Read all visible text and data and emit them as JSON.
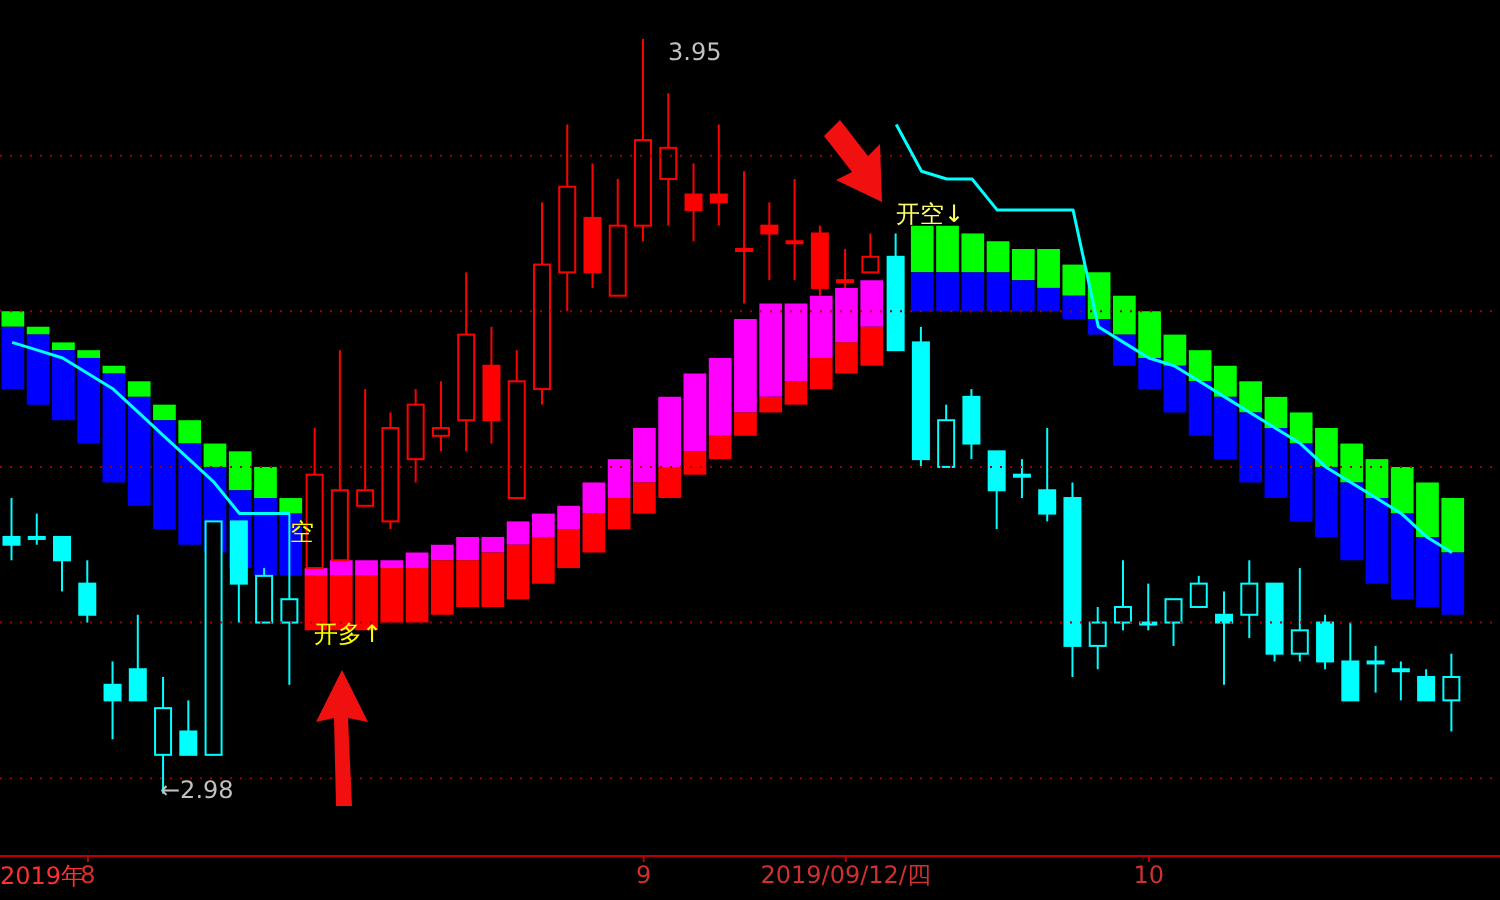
{
  "chart_data": {
    "type": "candlestick",
    "categories": [
      null,
      null,
      null,
      "8",
      null,
      null,
      null,
      null,
      null,
      null,
      null,
      null,
      null,
      null,
      null,
      null,
      null,
      null,
      null,
      null,
      null,
      null,
      null,
      null,
      null,
      "9",
      null,
      null,
      null,
      null,
      null,
      null,
      null,
      "2019/09/12/四",
      null,
      null,
      null,
      null,
      null,
      null,
      null,
      null,
      null,
      null,
      null,
      "10",
      null,
      null,
      null,
      null,
      null,
      null,
      null,
      null,
      null,
      null,
      null,
      null
    ],
    "ohlc": [
      [
        3.31,
        3.36,
        3.28,
        3.3
      ],
      [
        3.31,
        3.34,
        3.3,
        3.31
      ],
      [
        3.31,
        3.31,
        3.24,
        3.28
      ],
      [
        3.25,
        3.28,
        3.2,
        3.21
      ],
      [
        3.12,
        3.15,
        3.05,
        3.1
      ],
      [
        3.14,
        3.21,
        3.1,
        3.1
      ],
      [
        3.03,
        3.13,
        2.98,
        3.09
      ],
      [
        3.06,
        3.1,
        3.03,
        3.03
      ],
      [
        3.03,
        3.33,
        3.03,
        3.33
      ],
      [
        3.33,
        3.33,
        3.2,
        3.25
      ],
      [
        3.2,
        3.27,
        3.2,
        3.26
      ],
      [
        3.2,
        3.34,
        3.12,
        3.23
      ],
      [
        3.27,
        3.45,
        3.27,
        3.39
      ],
      [
        3.28,
        3.55,
        3.28,
        3.37
      ],
      [
        3.35,
        3.5,
        3.35,
        3.37
      ],
      [
        3.33,
        3.47,
        3.32,
        3.45
      ],
      [
        3.41,
        3.5,
        3.38,
        3.48
      ],
      [
        3.44,
        3.51,
        3.42,
        3.45
      ],
      [
        3.46,
        3.65,
        3.42,
        3.57
      ],
      [
        3.53,
        3.58,
        3.43,
        3.46
      ],
      [
        3.36,
        3.55,
        3.36,
        3.51
      ],
      [
        3.5,
        3.74,
        3.48,
        3.66
      ],
      [
        3.65,
        3.84,
        3.6,
        3.76
      ],
      [
        3.72,
        3.79,
        3.63,
        3.65
      ],
      [
        3.62,
        3.77,
        3.62,
        3.71
      ],
      [
        3.71,
        3.95,
        3.69,
        3.82
      ],
      [
        3.77,
        3.88,
        3.71,
        3.81
      ],
      [
        3.75,
        3.79,
        3.69,
        3.73
      ],
      [
        3.75,
        3.84,
        3.71,
        3.74
      ],
      [
        3.68,
        3.78,
        3.61,
        3.68
      ],
      [
        3.71,
        3.74,
        3.64,
        3.7
      ],
      [
        3.69,
        3.77,
        3.64,
        3.69
      ],
      [
        3.7,
        3.71,
        3.62,
        3.63
      ],
      [
        3.64,
        3.68,
        3.63,
        3.64
      ],
      [
        3.65,
        3.7,
        3.65,
        3.67
      ],
      [
        3.67,
        3.7,
        3.55,
        3.55
      ],
      [
        3.56,
        3.58,
        3.4,
        3.41
      ],
      [
        3.4,
        3.48,
        3.4,
        3.46
      ],
      [
        3.49,
        3.5,
        3.41,
        3.43
      ],
      [
        3.42,
        3.42,
        3.32,
        3.37
      ],
      [
        3.39,
        3.41,
        3.36,
        3.39
      ],
      [
        3.37,
        3.45,
        3.33,
        3.34
      ],
      [
        3.36,
        3.38,
        3.13,
        3.17
      ],
      [
        3.17,
        3.22,
        3.14,
        3.2
      ],
      [
        3.2,
        3.28,
        3.19,
        3.22
      ],
      [
        3.2,
        3.25,
        3.19,
        3.2
      ],
      [
        3.2,
        3.23,
        3.17,
        3.23
      ],
      [
        3.22,
        3.26,
        3.22,
        3.25
      ],
      [
        3.21,
        3.24,
        3.12,
        3.2
      ],
      [
        3.21,
        3.28,
        3.18,
        3.25
      ],
      [
        3.25,
        3.25,
        3.15,
        3.16
      ],
      [
        3.16,
        3.27,
        3.15,
        3.19
      ],
      [
        3.2,
        3.21,
        3.14,
        3.15
      ],
      [
        3.15,
        3.2,
        3.1,
        3.1
      ],
      [
        3.15,
        3.17,
        3.11,
        3.15
      ],
      [
        3.14,
        3.15,
        3.1,
        3.14
      ],
      [
        3.13,
        3.14,
        3.1,
        3.1
      ],
      [
        3.1,
        3.16,
        3.06,
        3.13
      ]
    ],
    "colors": [
      "#00ffff",
      "#00ffff",
      "#00ffff",
      "#00ffff",
      "#00ffff",
      "#00ffff",
      "#00ffff",
      "#00ffff",
      "#00ffff",
      "#00ffff",
      "#00ffff",
      "#00ffff",
      "#ff0000",
      "#ff0000",
      "#ff0000",
      "#ff0000",
      "#ff0000",
      "#ff0000",
      "#ff0000",
      "#ff0000",
      "#ff0000",
      "#ff0000",
      "#ff0000",
      "#ff0000",
      "#ff0000",
      "#ff0000",
      "#ff0000",
      "#ff0000",
      "#ff0000",
      "#ff0000",
      "#ff0000",
      "#ff0000",
      "#ff0000",
      "#ff0000",
      "#ff0000",
      "#00ffff",
      "#00ffff",
      "#00ffff",
      "#00ffff",
      "#00ffff",
      "#00ffff",
      "#00ffff",
      "#00ffff",
      "#00ffff",
      "#00ffff",
      "#00ffff",
      "#00ffff",
      "#00ffff",
      "#00ffff",
      "#00ffff",
      "#00ffff",
      "#00ffff",
      "#00ffff",
      "#00ffff",
      "#00ffff",
      "#00ffff",
      "#00ffff",
      "#00ffff"
    ],
    "series": [
      {
        "type": "bar",
        "color": "#00ff00",
        "base": [
          3.58,
          3.57,
          3.55,
          3.54,
          3.52,
          3.49,
          3.46,
          3.43,
          3.4,
          3.37,
          3.36,
          3.34,
          null,
          null,
          null,
          null,
          null,
          null,
          null,
          null,
          null,
          null,
          null,
          null,
          null,
          null,
          null,
          null,
          null,
          null,
          null,
          null,
          null,
          null,
          null,
          null,
          3.65,
          3.65,
          3.65,
          3.65,
          3.64,
          3.63,
          3.62,
          3.59,
          3.57,
          3.54,
          3.53,
          3.51,
          3.49,
          3.47,
          3.45,
          3.43,
          3.4,
          3.38,
          3.36,
          3.34,
          3.31,
          3.29
        ],
        "values": [
          0.02,
          0.01,
          0.01,
          0.01,
          0.01,
          0.02,
          0.02,
          0.03,
          0.03,
          0.05,
          0.04,
          0.02,
          null,
          null,
          null,
          null,
          null,
          null,
          null,
          null,
          null,
          null,
          null,
          null,
          null,
          null,
          null,
          null,
          null,
          null,
          null,
          null,
          null,
          null,
          null,
          null,
          0.06,
          0.06,
          0.05,
          0.04,
          0.04,
          0.05,
          0.04,
          0.06,
          0.05,
          0.06,
          0.04,
          0.04,
          0.04,
          0.04,
          0.04,
          0.04,
          0.05,
          0.05,
          0.05,
          0.06,
          0.07,
          0.07
        ]
      },
      {
        "type": "bar",
        "color": "#0000ff",
        "base": [
          3.5,
          3.48,
          3.46,
          3.43,
          3.38,
          3.35,
          3.32,
          3.3,
          3.29,
          3.27,
          3.26,
          3.26,
          null,
          null,
          null,
          null,
          null,
          null,
          null,
          null,
          null,
          null,
          null,
          null,
          null,
          null,
          null,
          null,
          null,
          null,
          null,
          null,
          null,
          null,
          null,
          null,
          3.6,
          3.6,
          3.6,
          3.6,
          3.6,
          3.6,
          3.59,
          3.57,
          3.53,
          3.5,
          3.47,
          3.44,
          3.41,
          3.38,
          3.36,
          3.33,
          3.31,
          3.28,
          3.25,
          3.23,
          3.22,
          3.21
        ],
        "values": [
          0.08,
          0.09,
          0.09,
          0.11,
          0.14,
          0.14,
          0.14,
          0.13,
          0.11,
          0.1,
          0.1,
          0.08,
          null,
          null,
          null,
          null,
          null,
          null,
          null,
          null,
          null,
          null,
          null,
          null,
          null,
          null,
          null,
          null,
          null,
          null,
          null,
          null,
          null,
          null,
          null,
          null,
          0.05,
          0.05,
          0.05,
          0.05,
          0.04,
          0.03,
          0.03,
          0.02,
          0.04,
          0.04,
          0.06,
          0.07,
          0.08,
          0.09,
          0.09,
          0.1,
          0.09,
          0.1,
          0.11,
          0.11,
          0.09,
          0.08
        ]
      },
      {
        "type": "bar",
        "color": "#ff00ff",
        "base": [
          null,
          null,
          null,
          null,
          null,
          null,
          null,
          null,
          null,
          null,
          null,
          null,
          3.26,
          3.26,
          3.26,
          3.27,
          3.27,
          3.28,
          3.28,
          3.29,
          3.3,
          3.31,
          3.32,
          3.34,
          3.36,
          3.38,
          3.4,
          3.42,
          3.44,
          3.47,
          3.49,
          3.51,
          3.54,
          3.56,
          3.58,
          null,
          null,
          null,
          null,
          null,
          null,
          null,
          null,
          null,
          null,
          null,
          null,
          null,
          null,
          null,
          null,
          null,
          null,
          null,
          null,
          null,
          null,
          null
        ],
        "values": [
          null,
          null,
          null,
          null,
          null,
          null,
          null,
          null,
          null,
          null,
          null,
          null,
          0.01,
          0.02,
          0.02,
          0.01,
          0.02,
          0.02,
          0.03,
          0.02,
          0.03,
          0.03,
          0.03,
          0.04,
          0.05,
          0.07,
          0.09,
          0.1,
          0.1,
          0.12,
          0.12,
          0.1,
          0.08,
          0.07,
          0.06,
          null,
          null,
          null,
          null,
          null,
          null,
          null,
          null,
          null,
          null,
          null,
          null,
          null,
          null,
          null,
          null,
          null,
          null,
          null,
          null,
          null,
          null,
          null
        ]
      },
      {
        "type": "bar",
        "color": "#ff0000",
        "base": [
          null,
          null,
          null,
          null,
          null,
          null,
          null,
          null,
          null,
          null,
          null,
          null,
          3.19,
          3.19,
          3.19,
          3.2,
          3.2,
          3.21,
          3.22,
          3.22,
          3.23,
          3.25,
          3.27,
          3.29,
          3.32,
          3.34,
          3.36,
          3.39,
          3.41,
          3.44,
          3.47,
          3.48,
          3.5,
          3.52,
          3.53,
          null,
          null,
          null,
          null,
          null,
          null,
          null,
          null,
          null,
          null,
          null,
          null,
          null,
          null,
          null,
          null,
          null,
          null,
          null,
          null,
          null,
          null,
          null
        ],
        "values": [
          null,
          null,
          null,
          null,
          null,
          null,
          null,
          null,
          null,
          null,
          null,
          null,
          0.07,
          0.07,
          0.07,
          0.07,
          0.07,
          0.07,
          0.06,
          0.07,
          0.07,
          0.06,
          0.05,
          0.05,
          0.04,
          0.04,
          0.04,
          0.03,
          0.03,
          0.03,
          0.02,
          0.03,
          0.04,
          0.04,
          0.05,
          null,
          null,
          null,
          null,
          null,
          null,
          null,
          null,
          null,
          null,
          null,
          null,
          null,
          null,
          null,
          null,
          null,
          null,
          null,
          null,
          null,
          null,
          null
        ]
      },
      {
        "type": "line",
        "color": "#00ffff",
        "values": [
          3.56,
          3.55,
          3.54,
          3.52,
          3.5,
          3.47,
          3.44,
          3.41,
          3.38,
          3.34,
          3.34,
          3.34,
          null,
          null,
          null,
          null,
          null,
          null,
          null,
          null,
          null,
          null,
          null,
          null,
          null,
          null,
          null,
          null,
          null,
          null,
          null,
          null,
          null,
          null,
          null,
          3.84,
          3.78,
          3.77,
          3.77,
          3.73,
          3.73,
          3.73,
          3.73,
          3.58,
          3.56,
          3.54,
          3.53,
          3.51,
          3.49,
          3.47,
          3.45,
          3.43,
          3.4,
          3.38,
          3.36,
          3.34,
          3.31,
          3.29
        ]
      }
    ],
    "ylim": [
      2.9,
      4.0
    ],
    "yticks": [
      {
        "value": 3.0,
        "label": null
      },
      {
        "value": 3.2,
        "label": null
      },
      {
        "value": 3.4,
        "label": null
      },
      {
        "value": 3.6,
        "label": null
      },
      {
        "value": 3.8,
        "label": null
      }
    ],
    "grid": "y",
    "annotations": [
      "3.95",
      "←2.98",
      "开多↑",
      "开空↓",
      "空",
      "2019年"
    ]
  }
}
